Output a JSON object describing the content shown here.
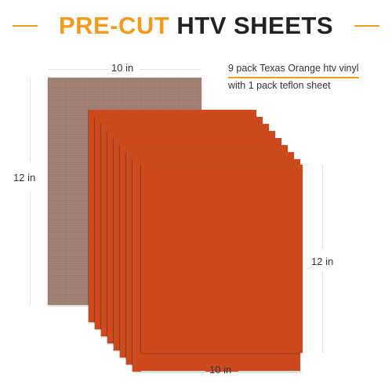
{
  "title": {
    "accent": "PRE-CUT",
    "main": "HTV SHEETS"
  },
  "dimensions": {
    "top_width": "10 in",
    "left_height": "12 in",
    "right_height": "12 in",
    "bottom_width": "10 in"
  },
  "caption": {
    "line1": "9 pack Texas Orange htv vinyl",
    "line2": "with 1 pack teflon sheet"
  },
  "colors": {
    "accent": "#f29b1d",
    "vinyl_orange": "#cc4a1d",
    "teflon_brown": "#a07f70"
  },
  "sheet_count": 9
}
